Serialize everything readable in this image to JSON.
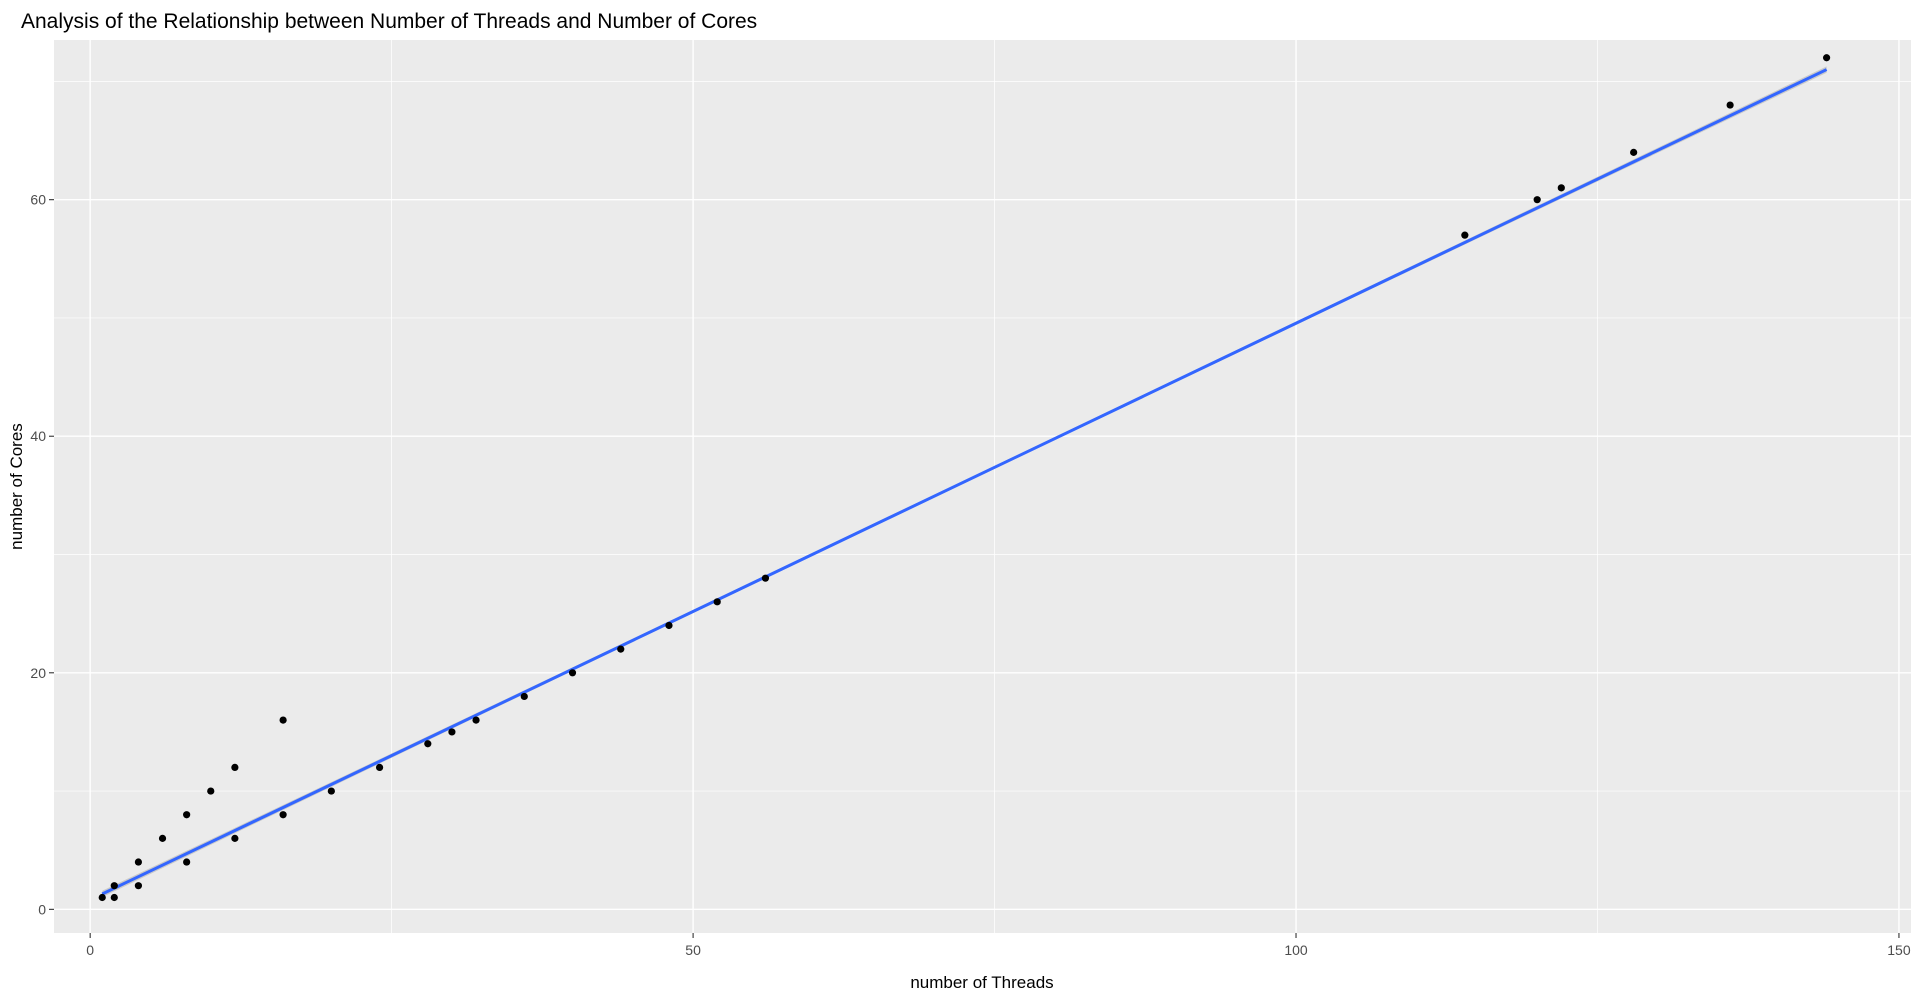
{
  "chart_data": {
    "type": "scatter",
    "title": "Analysis of the Relationship between Number of Threads and Number of Cores",
    "xlabel": "number of Threads",
    "ylabel": "number of Cores",
    "xlim": [
      -3,
      151
    ],
    "ylim": [
      -2,
      73.5
    ],
    "x_ticks": [
      0,
      50,
      100,
      150
    ],
    "x_tick_labels": [
      "0",
      "50",
      "100",
      "150"
    ],
    "y_ticks": [
      0,
      20,
      40,
      60
    ],
    "y_tick_labels": [
      "0",
      "20",
      "40",
      "60"
    ],
    "grid": true,
    "legend": "none",
    "colors": {
      "panel_background": "#ebebeb",
      "gridline": "#ffffff",
      "points": "#000000",
      "fit_line": "#3366ff",
      "confidence_band": "#bdbdbd"
    },
    "series": [
      {
        "values": [
          {
            "x": 1,
            "y": 1
          },
          {
            "x": 2,
            "y": 1
          },
          {
            "x": 2,
            "y": 2
          },
          {
            "x": 4,
            "y": 2
          },
          {
            "x": 4,
            "y": 4
          },
          {
            "x": 6,
            "y": 6
          },
          {
            "x": 8,
            "y": 4
          },
          {
            "x": 8,
            "y": 8
          },
          {
            "x": 10,
            "y": 10
          },
          {
            "x": 12,
            "y": 6
          },
          {
            "x": 12,
            "y": 12
          },
          {
            "x": 16,
            "y": 8
          },
          {
            "x": 16,
            "y": 16
          },
          {
            "x": 20,
            "y": 10
          },
          {
            "x": 24,
            "y": 12
          },
          {
            "x": 28,
            "y": 14
          },
          {
            "x": 30,
            "y": 15
          },
          {
            "x": 32,
            "y": 16
          },
          {
            "x": 36,
            "y": 18
          },
          {
            "x": 40,
            "y": 20
          },
          {
            "x": 44,
            "y": 22
          },
          {
            "x": 48,
            "y": 24
          },
          {
            "x": 52,
            "y": 26
          },
          {
            "x": 56,
            "y": 28
          },
          {
            "x": 114,
            "y": 57
          },
          {
            "x": 120,
            "y": 60
          },
          {
            "x": 122,
            "y": 61
          },
          {
            "x": 128,
            "y": 64
          },
          {
            "x": 136,
            "y": 68
          },
          {
            "x": 144,
            "y": 72
          }
        ]
      }
    ],
    "fit": {
      "method": "linear",
      "from": {
        "x": 1,
        "y": 1.3
      },
      "to": {
        "x": 144,
        "y": 71
      }
    }
  }
}
